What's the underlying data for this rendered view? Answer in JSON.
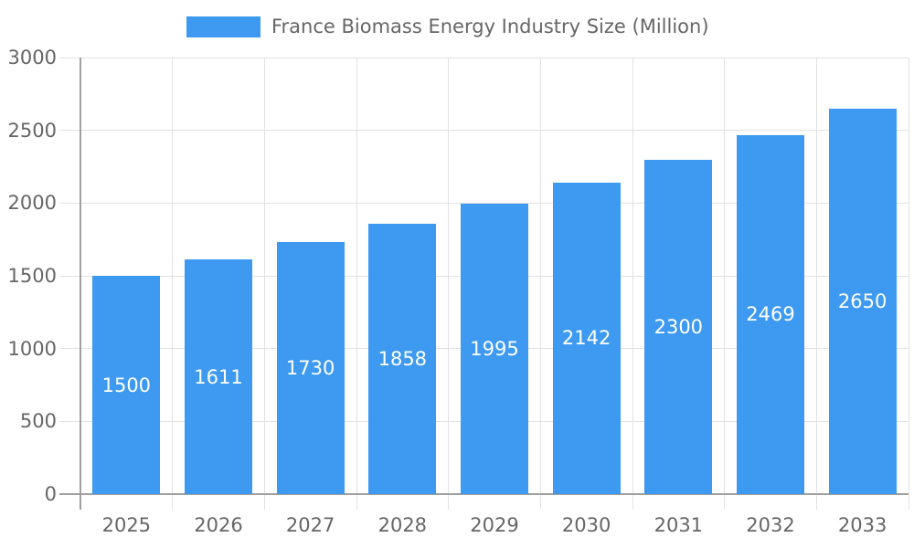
{
  "chart_data": {
    "type": "bar",
    "title": "France Biomass Energy Industry Size (Million)",
    "legend_entries": [
      "France Biomass Energy Industry Size (Million)"
    ],
    "legend_position": "top",
    "categories": [
      "2025",
      "2026",
      "2027",
      "2028",
      "2029",
      "2030",
      "2031",
      "2032",
      "2033"
    ],
    "values": [
      1500,
      1611,
      1730,
      1858,
      1995,
      2142,
      2300,
      2469,
      2650
    ],
    "value_labels": [
      "1500",
      "1611",
      "1730",
      "1858",
      "1995",
      "2142",
      "2300",
      "2469",
      "2650"
    ],
    "xlabel": "",
    "ylabel": "",
    "ylim": [
      0,
      3000
    ],
    "yticks": [
      0,
      500,
      1000,
      1500,
      2000,
      2500,
      3000
    ],
    "grid": true,
    "show_value_labels": true
  },
  "colors": {
    "bar": "#3d9af0",
    "text": "#666666",
    "grid": "#e2e2e2",
    "axis": "#a0a0a0",
    "value_label": "#ffffff",
    "background": "#ffffff"
  }
}
